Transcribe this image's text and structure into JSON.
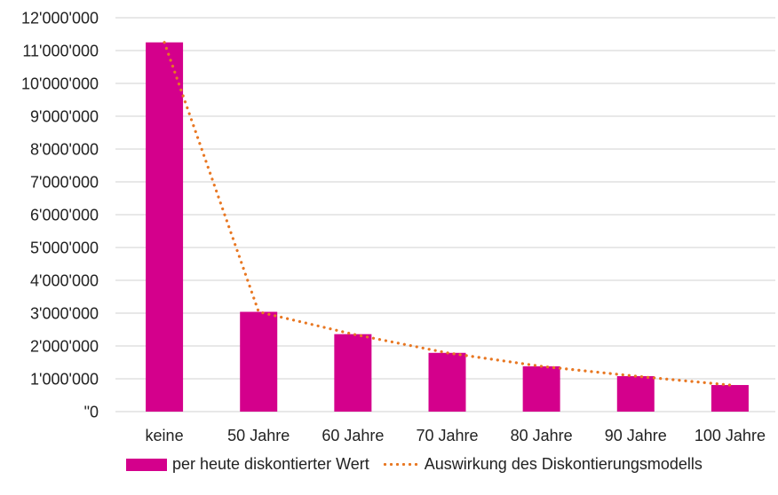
{
  "chart_data": {
    "type": "bar",
    "title": "",
    "xlabel": "",
    "ylabel": "",
    "ylim": [
      0,
      12000000
    ],
    "grid": true,
    "legend_position": "bottom",
    "yticks": [
      "\"0",
      "1'000'000",
      "2'000'000",
      "3'000'000",
      "4'000'000",
      "5'000'000",
      "6'000'000",
      "7'000'000",
      "8'000'000",
      "9'000'000",
      "10'000'000",
      "11'000'000",
      "12'000'000"
    ],
    "categories": [
      "keine",
      "50 Jahre",
      "60 Jahre",
      "70 Jahre",
      "80 Jahre",
      "90 Jahre",
      "100 Jahre"
    ],
    "series": [
      {
        "name": "per heute diskontierter Wert",
        "type": "bar",
        "color": "#d4008c",
        "values": [
          11250000,
          3040000,
          2360000,
          1790000,
          1380000,
          1080000,
          810000
        ]
      },
      {
        "name": "Auswirkung des Diskontierungsmodells",
        "type": "line",
        "style": "dotted",
        "color": "#e87722",
        "values": [
          11250000,
          3040000,
          2360000,
          1790000,
          1380000,
          1080000,
          810000
        ]
      }
    ]
  },
  "legend": {
    "bar_label": "per heute diskontierter Wert",
    "line_label": "Auswirkung des Diskontierungsmodells"
  }
}
